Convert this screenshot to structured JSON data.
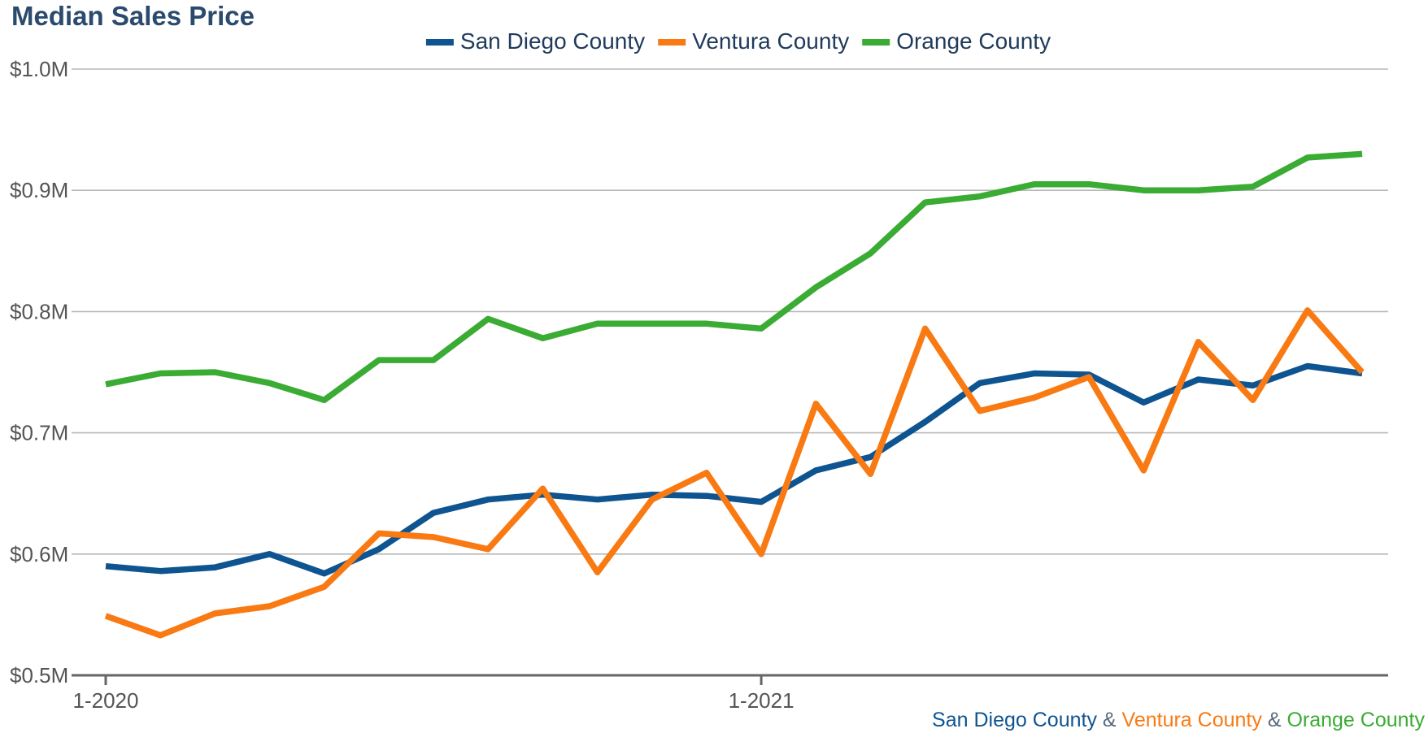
{
  "chart_data": {
    "type": "line",
    "title": "Median Sales Price",
    "xlabel": "",
    "ylabel": "",
    "ylim": [
      0.5,
      1.0
    ],
    "yticks": [
      {
        "value": 0.5,
        "label": "$0.5M"
      },
      {
        "value": 0.6,
        "label": "$0.6M"
      },
      {
        "value": 0.7,
        "label": "$0.7M"
      },
      {
        "value": 0.8,
        "label": "$0.8M"
      },
      {
        "value": 0.9,
        "label": "$0.9M"
      },
      {
        "value": 1.0,
        "label": "$1.0M"
      }
    ],
    "xticks": [
      {
        "index": 0,
        "label": "1-2020"
      },
      {
        "index": 12,
        "label": "1-2021"
      }
    ],
    "grid": true,
    "legend_position": "top-center",
    "x": [
      "1-2020",
      "2-2020",
      "3-2020",
      "4-2020",
      "5-2020",
      "6-2020",
      "7-2020",
      "8-2020",
      "9-2020",
      "10-2020",
      "11-2020",
      "12-2020",
      "1-2021",
      "2-2021",
      "3-2021",
      "4-2021",
      "5-2021",
      "6-2021",
      "7-2021",
      "8-2021",
      "9-2021",
      "10-2021",
      "11-2021",
      "12-2021"
    ],
    "series": [
      {
        "name": "San Diego County",
        "color": "#0e5490",
        "values": [
          0.59,
          0.586,
          0.589,
          0.6,
          0.584,
          0.604,
          0.634,
          0.645,
          0.649,
          0.645,
          0.649,
          0.648,
          0.643,
          0.669,
          0.68,
          0.709,
          0.741,
          0.749,
          0.748,
          0.725,
          0.744,
          0.739,
          0.755,
          0.749
        ]
      },
      {
        "name": "Ventura County",
        "color": "#f97a13",
        "values": [
          0.549,
          0.533,
          0.551,
          0.557,
          0.573,
          0.617,
          0.614,
          0.604,
          0.654,
          0.585,
          0.645,
          0.667,
          0.6,
          0.724,
          0.666,
          0.786,
          0.718,
          0.729,
          0.746,
          0.669,
          0.775,
          0.727,
          0.801,
          0.75
        ]
      },
      {
        "name": "Orange County",
        "color": "#3aab33",
        "values": [
          0.74,
          0.749,
          0.75,
          0.741,
          0.727,
          0.76,
          0.76,
          0.794,
          0.778,
          0.79,
          0.79,
          0.79,
          0.786,
          0.82,
          0.848,
          0.89,
          0.895,
          0.905,
          0.905,
          0.9,
          0.9,
          0.903,
          0.927,
          0.93
        ]
      }
    ]
  },
  "footer": {
    "parts": [
      {
        "text": "San Diego County",
        "color": "#0e5490"
      },
      {
        "text": " & ",
        "color": "#5a6a7a"
      },
      {
        "text": "Ventura County",
        "color": "#f97a13"
      },
      {
        "text": " & ",
        "color": "#5a6a7a"
      },
      {
        "text": "Orange County",
        "color": "#3aab33"
      }
    ]
  }
}
